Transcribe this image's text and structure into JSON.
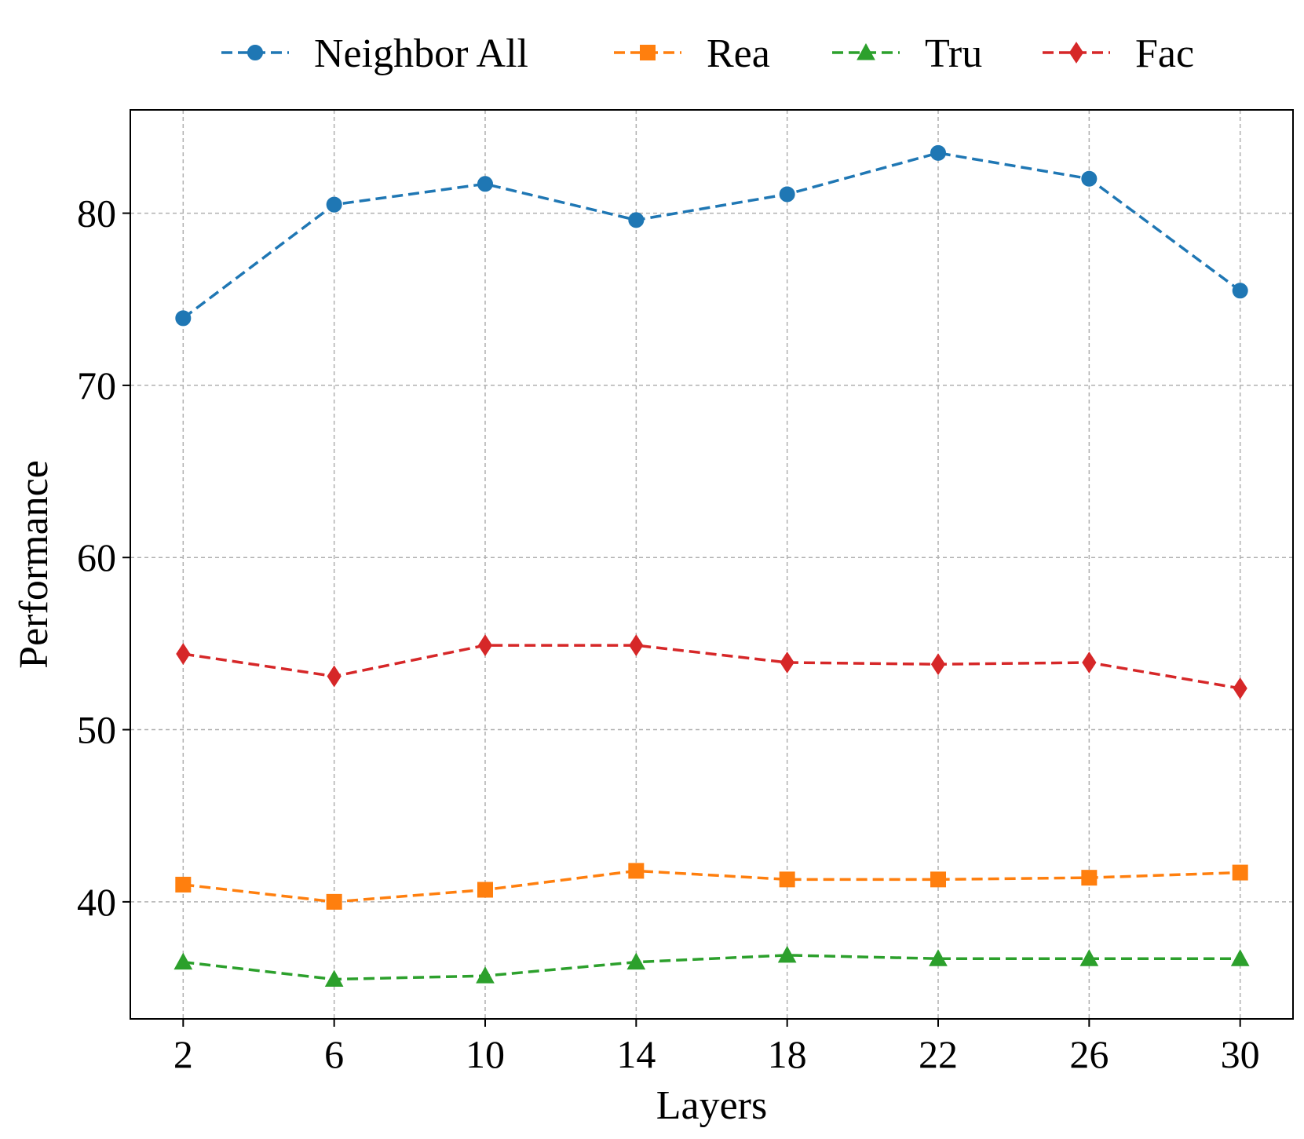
{
  "chart_data": {
    "type": "line",
    "title": "",
    "xlabel": "Layers",
    "ylabel": "Performance",
    "x": [
      2,
      6,
      10,
      14,
      18,
      22,
      26,
      30
    ],
    "x_tick_labels": [
      "2",
      "6",
      "10",
      "14",
      "18",
      "22",
      "26",
      "30"
    ],
    "xlim": [
      0.6,
      31.4
    ],
    "y_ticks": [
      40,
      50,
      60,
      70,
      80
    ],
    "y_tick_labels": [
      "40",
      "50",
      "60",
      "70",
      "80"
    ],
    "ylim": [
      33.2,
      86.0
    ],
    "grid": true,
    "legend_position": "top",
    "series": [
      {
        "name": "Neighbor All",
        "color": "#1f77b4",
        "marker": "circle",
        "line_style": "dashed",
        "values": [
          73.9,
          80.5,
          81.7,
          79.6,
          81.1,
          83.5,
          82.0,
          75.5
        ]
      },
      {
        "name": "Rea",
        "color": "#ff7f0e",
        "marker": "square",
        "line_style": "dashed",
        "values": [
          41.0,
          40.0,
          40.7,
          41.8,
          41.3,
          41.3,
          41.4,
          41.7
        ]
      },
      {
        "name": "Tru",
        "color": "#2ca02c",
        "marker": "triangle",
        "line_style": "dashed",
        "values": [
          36.5,
          35.5,
          35.7,
          36.5,
          36.9,
          36.7,
          36.7,
          36.7
        ]
      },
      {
        "name": "Fac",
        "color": "#d62728",
        "marker": "diamond",
        "line_style": "dashed",
        "values": [
          54.4,
          53.1,
          54.9,
          54.9,
          53.9,
          53.8,
          53.9,
          52.4
        ]
      }
    ]
  }
}
